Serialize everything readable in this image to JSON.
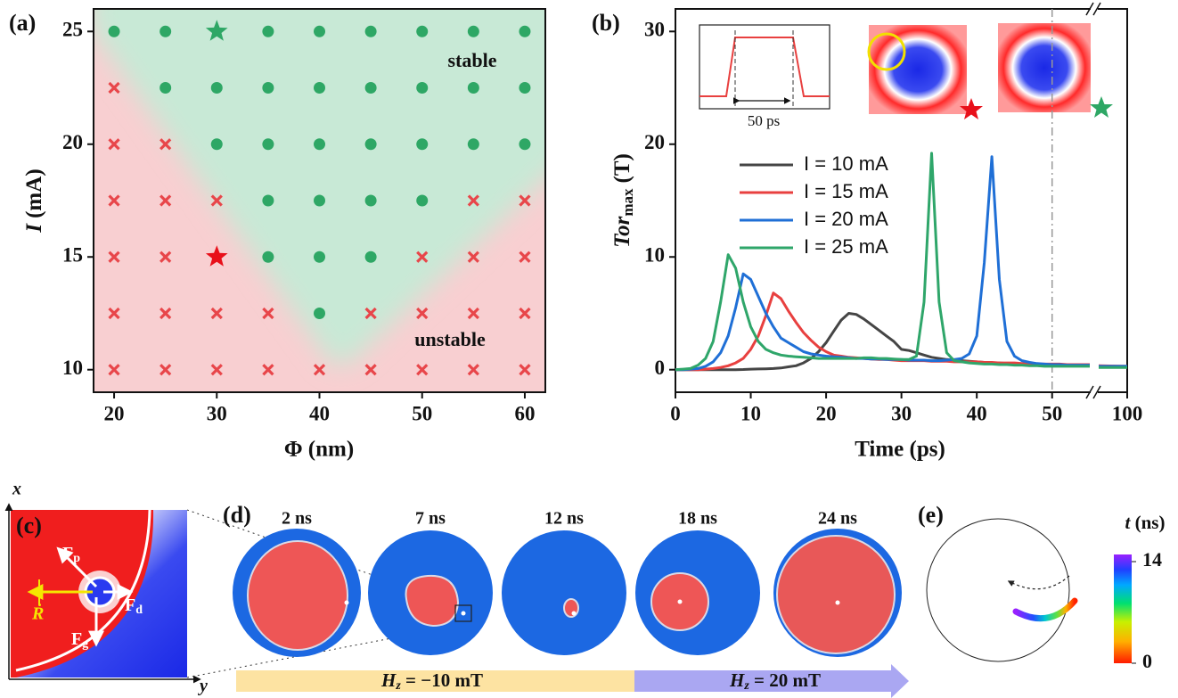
{
  "chart_data": [
    {
      "type": "scatter",
      "panel_label": "(a)",
      "xlabel": "Φ (nm)",
      "ylabel": [
        "I",
        "(mA)"
      ],
      "xlim": [
        18,
        62
      ],
      "ylim": [
        9,
        26
      ],
      "xticks": [
        20,
        30,
        40,
        50,
        60
      ],
      "yticks": [
        10,
        15,
        20,
        25
      ],
      "series": [
        {
          "name": "stable",
          "color": "#2ea765",
          "marker": "circle",
          "x": [
            20,
            25,
            35,
            40,
            45,
            50,
            55,
            60,
            25,
            30,
            35,
            40,
            45,
            50,
            55,
            60,
            30,
            35,
            40,
            45,
            50,
            55,
            60,
            35,
            40,
            45,
            50,
            35,
            40,
            45,
            40
          ],
          "values": [
            25,
            25,
            25,
            25,
            25,
            25,
            25,
            25,
            22.5,
            22.5,
            22.5,
            22.5,
            22.5,
            22.5,
            22.5,
            22.5,
            20,
            20,
            20,
            20,
            20,
            20,
            20,
            17.5,
            17.5,
            17.5,
            17.5,
            15,
            15,
            15,
            12.5
          ]
        },
        {
          "name": "unstable",
          "color": "#e8464a",
          "marker": "cross",
          "x": [
            20,
            20,
            25,
            20,
            25,
            30,
            55,
            60,
            20,
            25,
            50,
            55,
            60,
            20,
            25,
            30,
            35,
            45,
            50,
            55,
            60,
            20,
            25,
            30,
            35,
            40,
            45,
            50,
            55,
            60
          ],
          "values": [
            22.5,
            20,
            20,
            17.5,
            17.5,
            17.5,
            17.5,
            17.5,
            15,
            15,
            15,
            15,
            15,
            12.5,
            12.5,
            12.5,
            12.5,
            12.5,
            12.5,
            12.5,
            12.5,
            10,
            10,
            10,
            10,
            10,
            10,
            10,
            10,
            10
          ]
        },
        {
          "color": "#2ea765",
          "marker": "star",
          "x": [
            30
          ],
          "values": [
            25
          ]
        },
        {
          "color": "#e8101a",
          "marker": "star",
          "x": [
            30
          ],
          "values": [
            15
          ]
        }
      ]
    },
    {
      "type": "line",
      "panel_label": "(b)",
      "xlabel": "Time (ps)",
      "ylabel": [
        "Tor",
        "max",
        "(T)"
      ],
      "xlim": [
        0,
        100
      ],
      "x_break": [
        55,
        95
      ],
      "ylim": [
        -2,
        32
      ],
      "xticks": [
        0,
        10,
        20,
        30,
        40,
        50,
        100
      ],
      "yticks": [
        0,
        10,
        20,
        30
      ],
      "vline": 50,
      "inset_label": "50 ps",
      "x": [
        0,
        1,
        2,
        3,
        4,
        5,
        6,
        7,
        8,
        9,
        10,
        11,
        12,
        13,
        14,
        15,
        16,
        17,
        18,
        19,
        20,
        21,
        22,
        23,
        24,
        25,
        26,
        27,
        28,
        29,
        30,
        31,
        32,
        33,
        34,
        35,
        36,
        37,
        38,
        39,
        40,
        41,
        42,
        43,
        44,
        45,
        46,
        47,
        48,
        49,
        50,
        51,
        52,
        53,
        54,
        55,
        95,
        100
      ],
      "series": [
        {
          "name": "I = 10 mA",
          "color": "#454545",
          "values": [
            0,
            0,
            0,
            0,
            0,
            0,
            0,
            0,
            0,
            0.02,
            0.05,
            0.06,
            0.08,
            0.1,
            0.15,
            0.25,
            0.35,
            0.6,
            1.0,
            1.6,
            2.4,
            3.4,
            4.4,
            5.0,
            4.9,
            4.5,
            4.0,
            3.5,
            3.0,
            2.5,
            1.8,
            1.7,
            1.5,
            1.3,
            1.1,
            1.0,
            0.9,
            0.85,
            0.8,
            0.75,
            0.7,
            0.65,
            0.6,
            0.6,
            0.55,
            0.5,
            0.5,
            0.5,
            0.45,
            0.45,
            0.45,
            0.4,
            0.4,
            0.4,
            0.4,
            0.4,
            0.3,
            0.3
          ]
        },
        {
          "name": "I = 15 mA",
          "color": "#e8403f",
          "values": [
            0,
            0,
            0,
            0,
            0.05,
            0.1,
            0.2,
            0.35,
            0.6,
            1.0,
            1.8,
            3.0,
            4.8,
            6.8,
            6.3,
            5.2,
            4.2,
            3.3,
            2.6,
            2.0,
            1.6,
            1.3,
            1.2,
            1.1,
            1.05,
            1.0,
            0.95,
            0.9,
            0.9,
            0.85,
            0.8,
            0.8,
            0.8,
            0.8,
            0.75,
            0.75,
            0.75,
            0.7,
            0.7,
            0.7,
            0.7,
            0.65,
            0.65,
            0.6,
            0.6,
            0.6,
            0.55,
            0.55,
            0.5,
            0.5,
            0.5,
            0.5,
            0.45,
            0.45,
            0.45,
            0.45,
            0.35,
            0.3
          ]
        },
        {
          "name": "I = 20 mA",
          "color": "#1f6fd6",
          "values": [
            0,
            0,
            0.05,
            0.1,
            0.3,
            0.7,
            1.5,
            3.0,
            5.5,
            8.5,
            8.0,
            6.5,
            5.0,
            3.8,
            2.8,
            2.4,
            2.0,
            1.6,
            1.4,
            1.3,
            1.2,
            1.15,
            1.1,
            1.05,
            1.0,
            1.0,
            0.95,
            0.95,
            0.9,
            0.9,
            0.9,
            0.85,
            0.85,
            0.85,
            0.8,
            0.8,
            0.85,
            0.9,
            1.0,
            1.4,
            3.0,
            9.5,
            18.9,
            8.0,
            2.5,
            1.2,
            0.8,
            0.65,
            0.55,
            0.5,
            0.45,
            0.45,
            0.4,
            0.4,
            0.4,
            0.4,
            0.3,
            0.3
          ]
        },
        {
          "name": "I = 25 mA",
          "color": "#2fa66a",
          "values": [
            0,
            0.05,
            0.1,
            0.4,
            1.0,
            2.5,
            6.0,
            10.2,
            9.0,
            6.0,
            3.8,
            2.5,
            1.8,
            1.5,
            1.3,
            1.2,
            1.15,
            1.1,
            1.05,
            1.0,
            1.0,
            1.0,
            1.0,
            1.0,
            1.0,
            1.05,
            1.05,
            1.0,
            1.0,
            0.95,
            0.9,
            0.9,
            1.2,
            6.0,
            19.2,
            6.0,
            1.5,
            0.8,
            0.7,
            0.6,
            0.55,
            0.5,
            0.5,
            0.45,
            0.45,
            0.4,
            0.4,
            0.35,
            0.35,
            0.3,
            0.3,
            0.3,
            0.3,
            0.3,
            0.3,
            0.3,
            0.2,
            0.2
          ]
        }
      ]
    }
  ],
  "diagrams": {
    "c": {
      "label": "(c)",
      "x_axis": "x",
      "y_axis": "y",
      "force_p": [
        "F",
        "p"
      ],
      "force_d": [
        "F",
        "d"
      ],
      "force_g": [
        "F",
        "g"
      ],
      "velocity": "Ṙ"
    },
    "d": {
      "label": "(d)",
      "times": [
        "2 ns",
        "7 ns",
        "12 ns",
        "18 ns",
        "24 ns"
      ],
      "fields": [
        [
          "H",
          "z",
          " = −10 mT"
        ],
        [
          "H",
          "z",
          " = 20 mT"
        ]
      ]
    },
    "e": {
      "label": "(e)",
      "colorbar_label": [
        "t",
        " (ns)"
      ],
      "colorbar_ticks": [
        0,
        14
      ]
    }
  }
}
